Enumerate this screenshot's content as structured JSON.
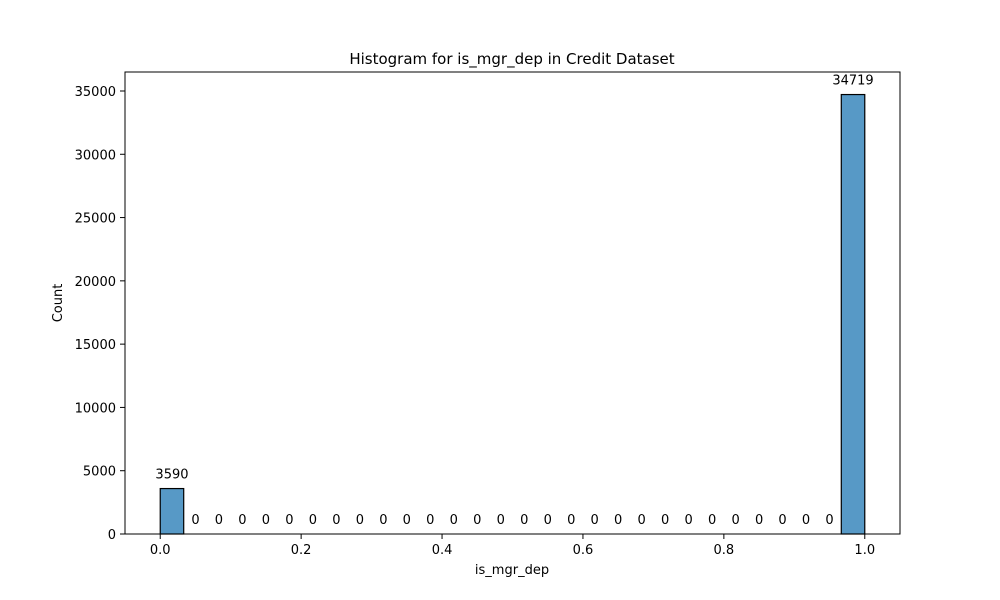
{
  "chart_data": {
    "type": "bar",
    "title": "Histogram for is_mgr_dep in Credit Dataset",
    "xlabel": "is_mgr_dep",
    "ylabel": "Count",
    "bins": 30,
    "bin_range": [
      0.0,
      1.0
    ],
    "values": [
      3590,
      0,
      0,
      0,
      0,
      0,
      0,
      0,
      0,
      0,
      0,
      0,
      0,
      0,
      0,
      0,
      0,
      0,
      0,
      0,
      0,
      0,
      0,
      0,
      0,
      0,
      0,
      0,
      0,
      34719
    ],
    "bar_labels": [
      "3590",
      "0",
      "0",
      "0",
      "0",
      "0",
      "0",
      "0",
      "0",
      "0",
      "0",
      "0",
      "0",
      "0",
      "0",
      "0",
      "0",
      "0",
      "0",
      "0",
      "0",
      "0",
      "0",
      "0",
      "0",
      "0",
      "0",
      "0",
      "0",
      "34719"
    ],
    "xlim": [
      -0.05,
      1.05
    ],
    "ylim": [
      0,
      36500
    ],
    "xticks": [
      0.0,
      0.2,
      0.4,
      0.6,
      0.8,
      1.0
    ],
    "xtick_labels": [
      "0.0",
      "0.2",
      "0.4",
      "0.6",
      "0.8",
      "1.0"
    ],
    "yticks": [
      0,
      5000,
      10000,
      15000,
      20000,
      25000,
      30000,
      35000
    ],
    "ytick_labels": [
      "0",
      "5000",
      "10000",
      "15000",
      "20000",
      "25000",
      "30000",
      "35000"
    ],
    "bar_color": "#5799c6",
    "bar_edge_color": "#000000",
    "grid": false,
    "legend": "none"
  }
}
